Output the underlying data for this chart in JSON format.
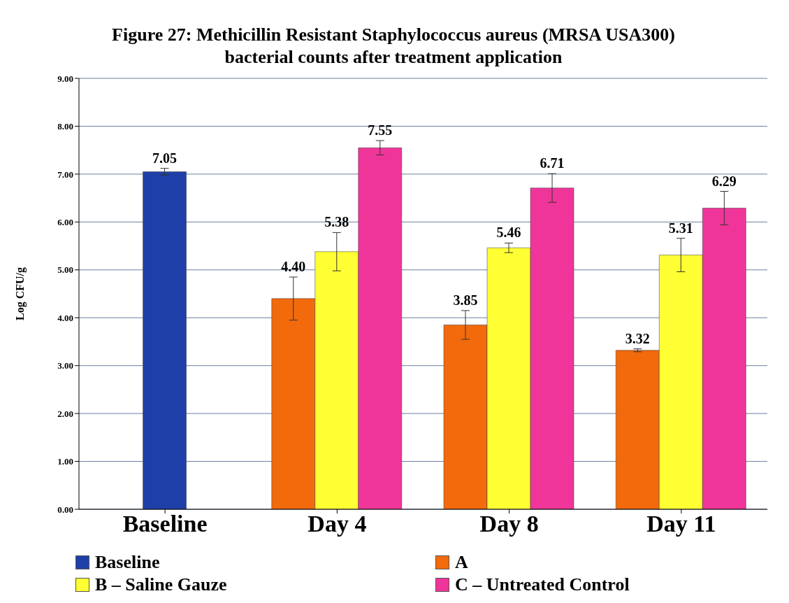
{
  "chart_data": {
    "type": "bar",
    "title": "Figure 27: Methicillin Resistant Staphylococcus aureus (MRSA USA300) bacterial counts after treatment application",
    "ylabel": "Log CFU/g",
    "categories": [
      "Baseline",
      "Day 4",
      "Day 8",
      "Day 11"
    ],
    "series": [
      {
        "name": "Baseline",
        "color": "#1f3fa8",
        "values": [
          7.05,
          null,
          null,
          null
        ],
        "errors": [
          0.07,
          null,
          null,
          null
        ],
        "value_labels": [
          "7.05",
          null,
          null,
          null
        ]
      },
      {
        "name": "A",
        "color": "#f26a0c",
        "values": [
          null,
          4.4,
          3.85,
          3.32
        ],
        "errors": [
          null,
          0.45,
          0.3,
          0.03
        ],
        "value_labels": [
          null,
          "4.40",
          "3.85",
          "3.32"
        ]
      },
      {
        "name": "B – Saline Gauze",
        "color": "#ffff33",
        "values": [
          null,
          5.38,
          5.46,
          5.31
        ],
        "errors": [
          null,
          0.4,
          0.1,
          0.35
        ],
        "value_labels": [
          null,
          "5.38",
          "5.46",
          "5.31"
        ]
      },
      {
        "name": "C – Untreated Control",
        "color": "#f0359a",
        "values": [
          null,
          7.55,
          6.71,
          6.29
        ],
        "errors": [
          null,
          0.15,
          0.3,
          0.35
        ],
        "value_labels": [
          null,
          "7.55",
          "6.71",
          "6.29"
        ]
      }
    ],
    "ylim": [
      0,
      9
    ],
    "yticks": [
      {
        "value": 0,
        "label": "0.00"
      },
      {
        "value": 1,
        "label": "1.00"
      },
      {
        "value": 2,
        "label": "2.00"
      },
      {
        "value": 3,
        "label": "3.00"
      },
      {
        "value": 4,
        "label": "4.00"
      },
      {
        "value": 5,
        "label": "5.00"
      },
      {
        "value": 6,
        "label": "6.00"
      },
      {
        "value": 7,
        "label": "7.00"
      },
      {
        "value": 8,
        "label": "8.00"
      },
      {
        "value": 9,
        "label": "9.00"
      }
    ],
    "grid": "y",
    "legend": "bottom"
  }
}
